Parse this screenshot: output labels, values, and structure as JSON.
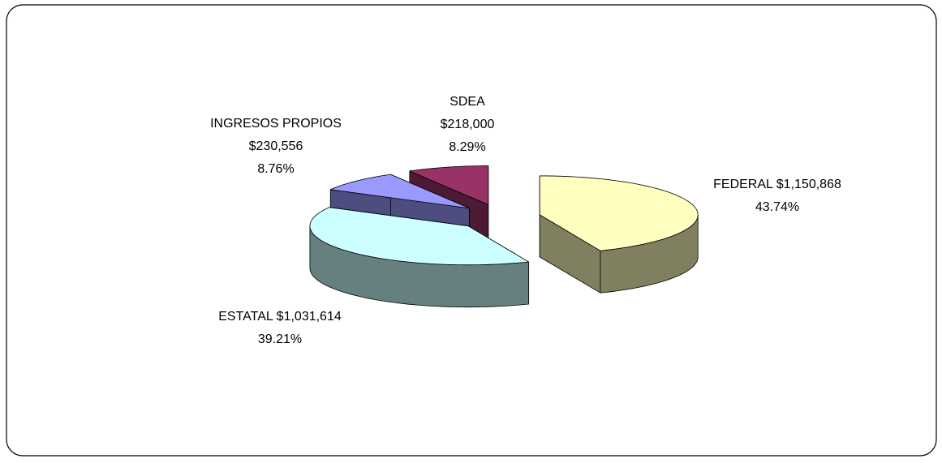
{
  "chart_data": {
    "type": "pie3d",
    "categories": [
      "FEDERAL",
      "ESTATAL",
      "INGRESOS PROPIOS",
      "SDEA"
    ],
    "values": [
      1150868,
      1031614,
      230556,
      218000
    ],
    "value_labels": [
      "$1,150,868",
      "$1,031,614",
      "$230,556",
      "$218,000"
    ],
    "percents": [
      43.74,
      39.21,
      8.76,
      8.29
    ],
    "percent_labels": [
      "43.74%",
      "39.21%",
      "8.76%",
      "8.29%"
    ],
    "colors": [
      "#ffffc0",
      "#ccffff",
      "#9999ff",
      "#993366"
    ]
  }
}
